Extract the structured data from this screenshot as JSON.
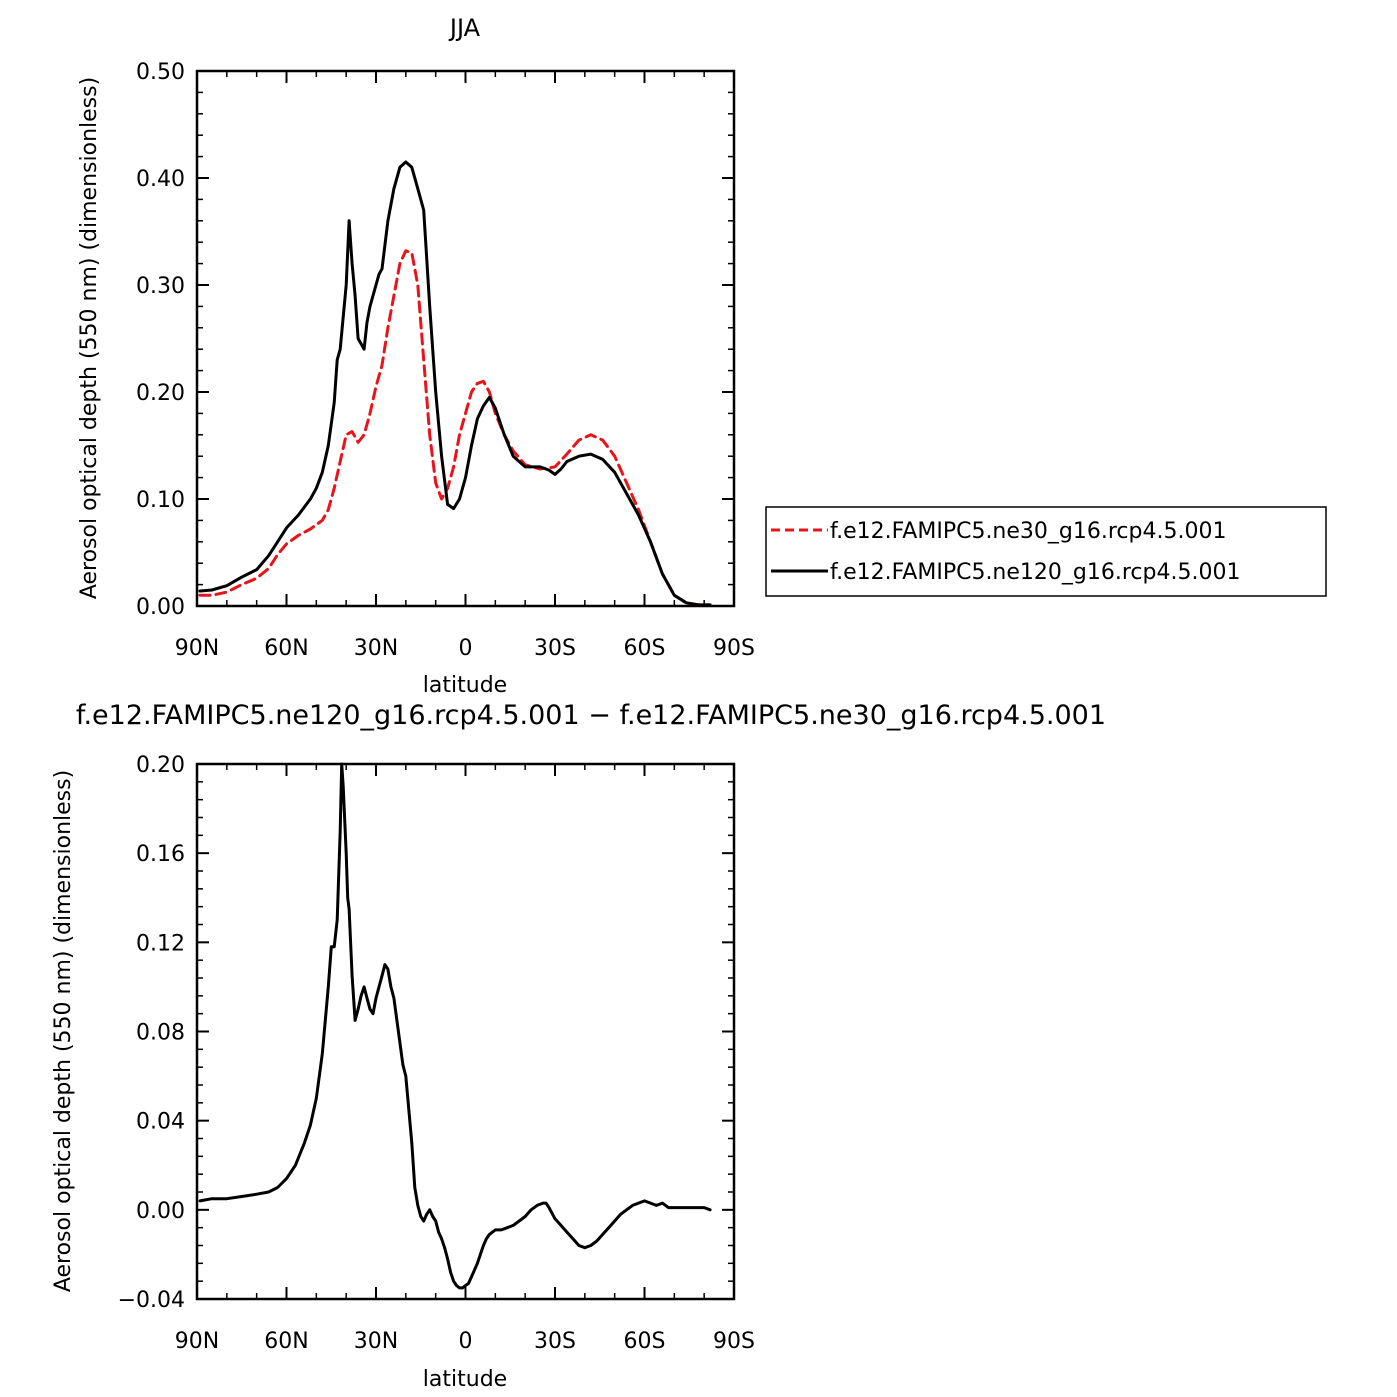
{
  "chart_data": [
    {
      "type": "line",
      "title": "JJA",
      "xlabel": "latitude",
      "ylabel": "Aerosol optical depth (550 nm) (dimensionless)",
      "xlim": [
        90,
        -90
      ],
      "ylim": [
        0.0,
        0.5
      ],
      "x_ticks": [
        90,
        60,
        30,
        0,
        -30,
        -60,
        -90
      ],
      "x_tick_labels": [
        "90N",
        "60N",
        "30N",
        "0",
        "30S",
        "60S",
        "90S"
      ],
      "y_ticks": [
        0.0,
        0.1,
        0.2,
        0.3,
        0.4,
        0.5
      ],
      "y_tick_labels": [
        "0.00",
        "0.10",
        "0.20",
        "0.30",
        "0.40",
        "0.50"
      ],
      "grid": false,
      "legend_position": "right",
      "series": [
        {
          "name": "f.e12.FAMIPC5.ne30_g16.rcp4.5.001",
          "color": "#e8141b",
          "dash": "dashed",
          "x": [
            89,
            85,
            80,
            75,
            70,
            66,
            63,
            60,
            56,
            52,
            48,
            46,
            44,
            42,
            40,
            38,
            36,
            34,
            32,
            30,
            28,
            26,
            24,
            22,
            20,
            18,
            16,
            14,
            12,
            10,
            8,
            6,
            4,
            2,
            0,
            -2,
            -4,
            -6,
            -8,
            -10,
            -13,
            -16,
            -20,
            -25,
            -30,
            -34,
            -38,
            -42,
            -46,
            -50,
            -54,
            -58,
            -62,
            -66,
            -70,
            -74,
            -78,
            -82
          ],
          "y": [
            0.01,
            0.01,
            0.013,
            0.02,
            0.026,
            0.035,
            0.048,
            0.058,
            0.066,
            0.072,
            0.08,
            0.09,
            0.11,
            0.135,
            0.16,
            0.163,
            0.153,
            0.16,
            0.18,
            0.205,
            0.225,
            0.26,
            0.29,
            0.32,
            0.332,
            0.33,
            0.3,
            0.23,
            0.16,
            0.115,
            0.1,
            0.11,
            0.13,
            0.16,
            0.18,
            0.2,
            0.208,
            0.21,
            0.2,
            0.18,
            0.16,
            0.145,
            0.132,
            0.128,
            0.13,
            0.142,
            0.155,
            0.16,
            0.155,
            0.14,
            0.115,
            0.09,
            0.06,
            0.03,
            0.01,
            0.003,
            0.001,
            0.001
          ]
        },
        {
          "name": "f.e12.FAMIPC5.ne120_g16.rcp4.5.001",
          "color": "#000000",
          "dash": "solid",
          "x": [
            89,
            85,
            80,
            75,
            70,
            66,
            63,
            60,
            56,
            52,
            50,
            48,
            46,
            44,
            43,
            42,
            40,
            39,
            38,
            37,
            36,
            34,
            33,
            32,
            30,
            29,
            28,
            26,
            24,
            22,
            20,
            18,
            16,
            14,
            12,
            10,
            8,
            6,
            4,
            2,
            0,
            -2,
            -4,
            -6,
            -8,
            -10,
            -13,
            -16,
            -20,
            -25,
            -28,
            -30,
            -32,
            -34,
            -38,
            -42,
            -46,
            -50,
            -54,
            -58,
            -62,
            -66,
            -70,
            -74,
            -78,
            -82
          ],
          "y": [
            0.014,
            0.015,
            0.019,
            0.027,
            0.034,
            0.047,
            0.06,
            0.073,
            0.085,
            0.1,
            0.11,
            0.125,
            0.15,
            0.19,
            0.23,
            0.24,
            0.3,
            0.36,
            0.32,
            0.29,
            0.25,
            0.24,
            0.265,
            0.28,
            0.3,
            0.31,
            0.315,
            0.36,
            0.39,
            0.41,
            0.415,
            0.41,
            0.39,
            0.37,
            0.28,
            0.2,
            0.14,
            0.095,
            0.091,
            0.1,
            0.12,
            0.15,
            0.175,
            0.187,
            0.195,
            0.185,
            0.16,
            0.14,
            0.13,
            0.13,
            0.127,
            0.123,
            0.128,
            0.135,
            0.14,
            0.142,
            0.137,
            0.125,
            0.105,
            0.085,
            0.06,
            0.03,
            0.01,
            0.003,
            0.001,
            0.001
          ]
        }
      ]
    },
    {
      "type": "line",
      "title": "f.e12.FAMIPC5.ne120_g16.rcp4.5.001 − f.e12.FAMIPC5.ne30_g16.rcp4.5.001",
      "xlabel": "latitude",
      "ylabel": "Aerosol optical depth (550 nm) (dimensionless)",
      "xlim": [
        90,
        -90
      ],
      "ylim": [
        -0.04,
        0.2
      ],
      "x_ticks": [
        90,
        60,
        30,
        0,
        -30,
        -60,
        -90
      ],
      "x_tick_labels": [
        "90N",
        "60N",
        "30N",
        "0",
        "30S",
        "60S",
        "90S"
      ],
      "y_ticks": [
        -0.04,
        0.0,
        0.04,
        0.08,
        0.12,
        0.16,
        0.2
      ],
      "y_tick_labels": [
        "−0.04",
        "0.00",
        "0.04",
        "0.08",
        "0.12",
        "0.16",
        "0.20"
      ],
      "grid": false,
      "series": [
        {
          "color": "#000000",
          "dash": "solid",
          "x": [
            89,
            85,
            80,
            75,
            70,
            66,
            63,
            60,
            57,
            54,
            52,
            50,
            48,
            46,
            45,
            44,
            43,
            42,
            41.5,
            41,
            40,
            39.5,
            39,
            38,
            37,
            36,
            35,
            34,
            33,
            32,
            31,
            30,
            29,
            28,
            27,
            26,
            25,
            24,
            23,
            22,
            21,
            20,
            19,
            18,
            17,
            16,
            15,
            14,
            13,
            12,
            11,
            10,
            9,
            8,
            7,
            6,
            5,
            4,
            3,
            2,
            1,
            0,
            -1,
            -2,
            -3,
            -4,
            -5,
            -6,
            -7,
            -8,
            -10,
            -12,
            -14,
            -16,
            -18,
            -20,
            -22,
            -24,
            -26,
            -27,
            -28,
            -30,
            -32,
            -34,
            -36,
            -38,
            -40,
            -42,
            -44,
            -46,
            -48,
            -50,
            -52,
            -54,
            -56,
            -58,
            -60,
            -62,
            -64,
            -66,
            -68,
            -70,
            -72,
            -74,
            -76,
            -78,
            -80,
            -82
          ],
          "y": [
            0.004,
            0.005,
            0.005,
            0.006,
            0.007,
            0.008,
            0.01,
            0.014,
            0.02,
            0.03,
            0.038,
            0.05,
            0.07,
            0.1,
            0.118,
            0.118,
            0.13,
            0.17,
            0.2,
            0.19,
            0.16,
            0.14,
            0.135,
            0.105,
            0.085,
            0.09,
            0.096,
            0.1,
            0.095,
            0.09,
            0.088,
            0.095,
            0.1,
            0.105,
            0.11,
            0.108,
            0.1,
            0.095,
            0.085,
            0.075,
            0.065,
            0.06,
            0.045,
            0.03,
            0.01,
            0.002,
            -0.003,
            -0.005,
            -0.002,
            0.0,
            -0.003,
            -0.005,
            -0.01,
            -0.013,
            -0.017,
            -0.022,
            -0.028,
            -0.032,
            -0.034,
            -0.035,
            -0.035,
            -0.034,
            -0.033,
            -0.03,
            -0.027,
            -0.024,
            -0.02,
            -0.016,
            -0.013,
            -0.011,
            -0.009,
            -0.009,
            -0.008,
            -0.007,
            -0.005,
            -0.003,
            0.0,
            0.002,
            0.003,
            0.003,
            0.001,
            -0.004,
            -0.007,
            -0.01,
            -0.013,
            -0.016,
            -0.017,
            -0.016,
            -0.014,
            -0.011,
            -0.008,
            -0.005,
            -0.002,
            0.0,
            0.002,
            0.003,
            0.004,
            0.003,
            0.002,
            0.003,
            0.001,
            0.001,
            0.001,
            0.001,
            0.001,
            0.001,
            0.001,
            0.0
          ]
        }
      ]
    }
  ]
}
